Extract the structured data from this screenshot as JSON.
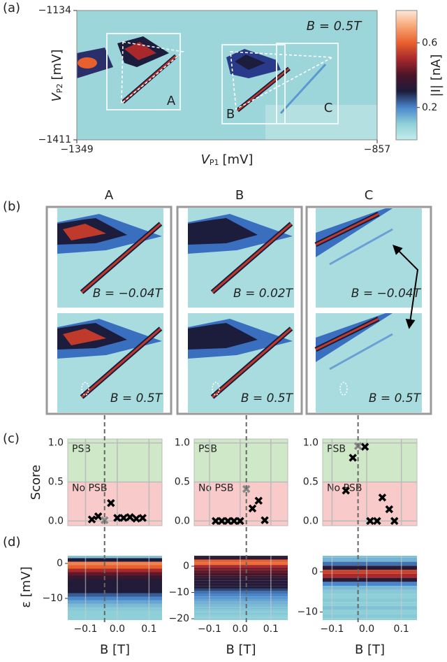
{
  "chart_data": [
    {
      "type": "image-map",
      "label": "(a)",
      "annotation": "B = 0.5T",
      "xlabel": {
        "symbol": "V",
        "subscript": "P1",
        "unit": "[mV]"
      },
      "ylabel": {
        "symbol": "V",
        "subscript": "P2",
        "unit": "[mV]"
      },
      "xlim": [
        -1349,
        -857
      ],
      "ylim": [
        -1411,
        -1134
      ],
      "xticks": [
        {
          "value": -1349,
          "label": "−1349"
        },
        {
          "value": -857,
          "label": "−857"
        }
      ],
      "yticks": [
        {
          "value": -1411,
          "label": "−1411"
        },
        {
          "value": -1134,
          "label": "−1134"
        }
      ],
      "regions": [
        "A",
        "B",
        "C"
      ],
      "colorbar": {
        "label": "|I| [nA]",
        "clim": [
          0,
          0.8
        ],
        "ticks": [
          0.2,
          0.6
        ],
        "colormap": [
          "#c4ecea",
          "#8fd0d8",
          "#4a86cc",
          "#1c1c3c",
          "#4a1428",
          "#a8282c",
          "#e8602e",
          "#f8a474",
          "#fde8d8"
        ]
      }
    },
    {
      "type": "image-map",
      "label": "(b)",
      "top_annotations": [
        "B = −0.04T",
        "B = 0.02T",
        "B = −0.04T"
      ]
    },
    {
      "type": "scatter",
      "label": "(c)",
      "ylabel": "Score",
      "ylim": [
        -0.06,
        1.05
      ],
      "yticks": [
        {
          "value": 0,
          "label": "0.0"
        },
        0.5,
        {
          "value": 1,
          "label": "1.0"
        }
      ],
      "threshold": 0.5,
      "bands": [
        {
          "name": "PSB",
          "color": "#cfe8c8",
          "text_color": "#1f9a1f"
        },
        {
          "name": "No PSB",
          "color": "#f9caca",
          "text_color": "#ee2020"
        }
      ],
      "panels": [
        {
          "xlim": [
            -0.156,
            0.141
          ],
          "series": [
            {
              "color": "#000000",
              "x": [
                -0.08,
                -0.06,
                -0.02,
                0.0,
                0.02,
                0.04,
                0.06,
                0.08
              ],
              "values": [
                0.02,
                0.06,
                0.23,
                0.04,
                0.04,
                0.05,
                0.03,
                0.04
              ]
            },
            {
              "color": "#888888",
              "x": [
                -0.04
              ],
              "values": [
                0.01
              ]
            }
          ]
        },
        {
          "xlim": [
            -0.15,
            0.155
          ],
          "series": [
            {
              "color": "#000000",
              "x": [
                -0.08,
                -0.06,
                -0.04,
                -0.02,
                0.0,
                0.04,
                0.06,
                0.08
              ],
              "values": [
                0.0,
                0.0,
                0.0,
                0.0,
                0.0,
                0.16,
                0.26,
                0.01
              ]
            },
            {
              "color": "#888888",
              "x": [
                0.02
              ],
              "values": [
                0.41
              ]
            }
          ]
        },
        {
          "xlim": [
            -0.127,
            0.145
          ],
          "series": [
            {
              "color": "#000000",
              "x": [
                -0.06,
                -0.04,
                -0.005,
                0.01,
                0.03,
                0.045,
                0.065,
                0.08
              ],
              "values": [
                0.39,
                0.81,
                0.95,
                0.0,
                0.0,
                0.3,
                0.15,
                0.0
              ]
            },
            {
              "color": "#888888",
              "x": [
                -0.025
              ],
              "values": [
                0.96
              ]
            }
          ]
        }
      ]
    },
    {
      "type": "heatmap",
      "label": "(d)",
      "ylabel": "ε [mV]",
      "xlabel": "B [T]",
      "panels": [
        {
          "xlim": [
            -0.156,
            0.141
          ],
          "ylim": [
            -16.2,
            2.2
          ],
          "xticks": [
            {
              "value": -0.1,
              "label": "−0.1"
            },
            {
              "value": 0,
              "label": "0.0"
            },
            0.1
          ],
          "yticks": [
            {
              "value": -10,
              "label": "−10"
            },
            0
          ],
          "y": [
            2,
            1,
            0,
            -1,
            -2,
            -3,
            -4,
            -5,
            -6,
            -7,
            -8,
            -9,
            -10,
            -11,
            -12,
            -13,
            -14,
            -15,
            -16
          ],
          "values": [
            0.12,
            0.3,
            0.65,
            0.6,
            0.5,
            0.42,
            0.36,
            0.32,
            0.31,
            0.32,
            0.3,
            0.24,
            0.2,
            0.16,
            0.13,
            0.11,
            0.1,
            0.1,
            0.1
          ]
        },
        {
          "xlim": [
            -0.15,
            0.155
          ],
          "ylim": [
            -20.5,
            4
          ],
          "xticks": [
            {
              "value": -0.1,
              "label": "−0.1"
            },
            {
              "value": 0,
              "label": "0.0"
            },
            0.1
          ],
          "yticks": [
            {
              "value": -20,
              "label": "−20"
            },
            {
              "value": -10,
              "label": "−10"
            },
            0
          ],
          "y": [
            4,
            3,
            2,
            1,
            0,
            -1,
            -2,
            -3,
            -4,
            -5,
            -6,
            -7,
            -8,
            -9,
            -10,
            -11,
            -12,
            -13,
            -14,
            -15,
            -16,
            -17,
            -18,
            -19,
            -20
          ],
          "values": [
            0.3,
            0.35,
            0.6,
            0.62,
            0.5,
            0.45,
            0.42,
            0.4,
            0.36,
            0.33,
            0.32,
            0.32,
            0.3,
            0.26,
            0.22,
            0.2,
            0.18,
            0.16,
            0.14,
            0.13,
            0.12,
            0.11,
            0.11,
            0.1,
            0.1
          ]
        },
        {
          "xlim": [
            -0.127,
            0.145
          ],
          "ylim": [
            -12,
            4
          ],
          "xticks": [
            {
              "value": -0.1,
              "label": "−0.1"
            },
            {
              "value": 0,
              "label": "0.0"
            },
            0.1
          ],
          "yticks": [
            {
              "value": -10,
              "label": "−10"
            },
            0
          ],
          "y": [
            4,
            3,
            2,
            1,
            0,
            -1,
            -2,
            -3,
            -4,
            -5,
            -6,
            -7,
            -8,
            -9,
            -10,
            -11,
            -12
          ],
          "values": [
            0.12,
            0.14,
            0.22,
            0.33,
            0.55,
            0.5,
            0.33,
            0.2,
            0.13,
            0.11,
            0.1,
            0.11,
            0.1,
            0.12,
            0.1,
            0.11,
            0.1
          ]
        }
      ]
    }
  ]
}
